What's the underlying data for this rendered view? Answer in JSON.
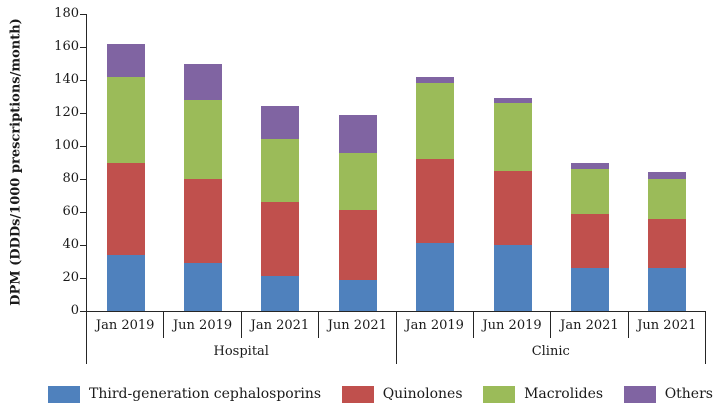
{
  "chart_data": {
    "type": "bar",
    "stacked": true,
    "title": "",
    "ylabel": "DPM (DDDs/1000 prescriptions/month)",
    "xlabel": "",
    "ylim": [
      0,
      180
    ],
    "yticks": [
      0,
      20,
      40,
      60,
      80,
      100,
      120,
      140,
      160,
      180
    ],
    "grid": false,
    "legend_position": "bottom",
    "groups": [
      "Hospital",
      "Clinic"
    ],
    "categories": [
      "Jan 2019",
      "Jun 2019",
      "Jan 2021",
      "Jun 2021",
      "Jan 2019",
      "Jun 2019",
      "Jan 2021",
      "Jun 2021"
    ],
    "series": [
      {
        "name": "Third-generation cephalosporins",
        "color": "#4F81BD",
        "values": [
          34,
          29,
          21,
          19,
          41,
          40,
          26,
          26
        ]
      },
      {
        "name": "Quinolones",
        "color": "#C0504D",
        "values": [
          56,
          51,
          45,
          42,
          51,
          45,
          33,
          30
        ]
      },
      {
        "name": "Macrolides",
        "color": "#9BBB59",
        "values": [
          52,
          48,
          38,
          35,
          46,
          41,
          27,
          24
        ]
      },
      {
        "name": "Others",
        "color": "#8064A2",
        "values": [
          20,
          22,
          20,
          23,
          4,
          3,
          4,
          4
        ]
      }
    ],
    "totals": [
      162,
      150,
      124,
      119,
      142,
      129,
      90,
      84
    ],
    "colors": {
      "axis": "#262626",
      "background": "#ffffff"
    }
  }
}
